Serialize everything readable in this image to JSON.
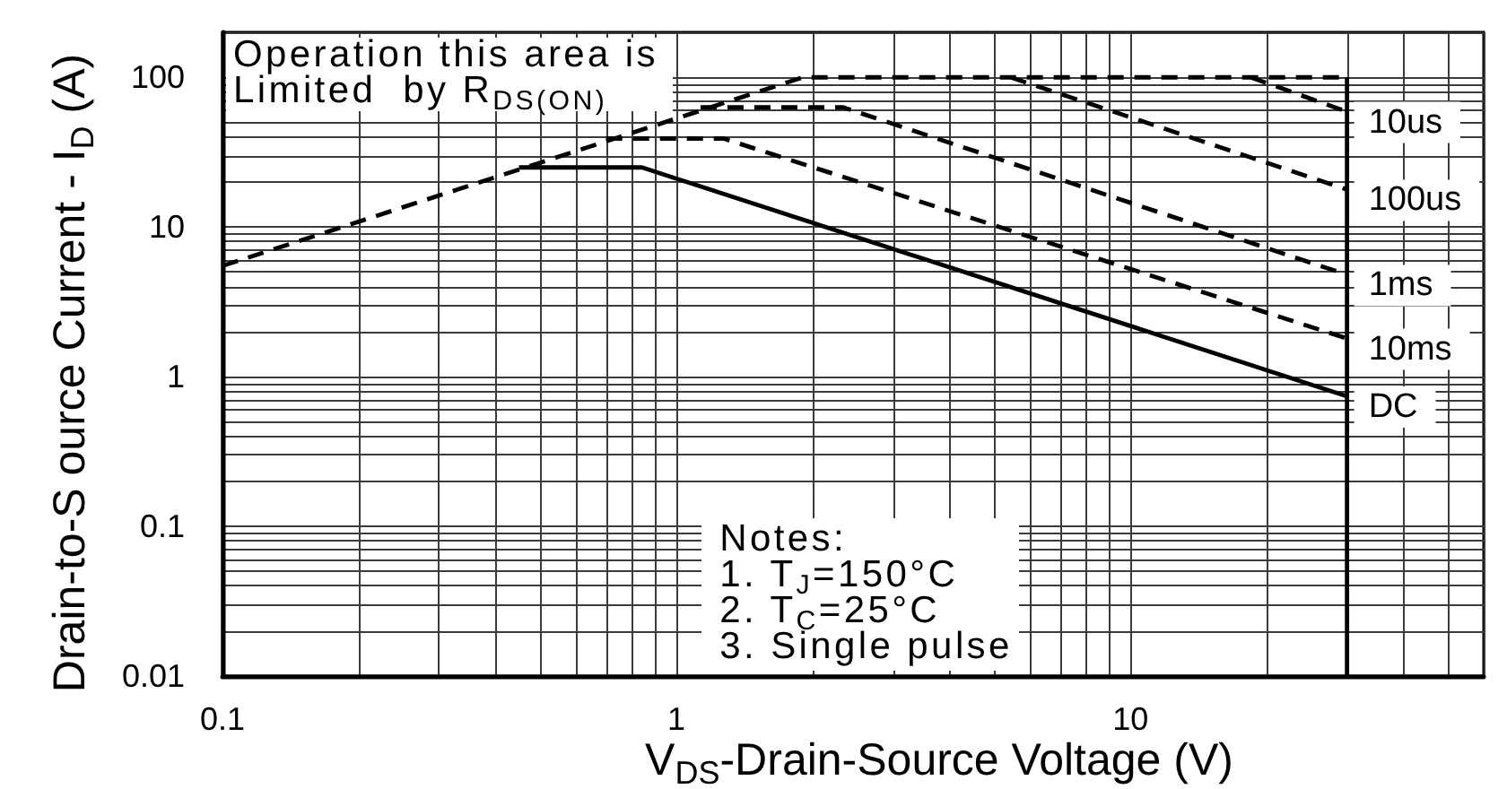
{
  "chart_data": {
    "type": "line",
    "xlabel": "V$_{DS}$-Drain-Source Voltage (V)",
    "ylabel": "Drain-to-S ource Current - I$_{D}$ (A)",
    "log": "xy",
    "grid": true,
    "marker": "none",
    "xlim": [
      0.1,
      60
    ],
    "ylim": [
      0.01,
      200
    ],
    "xticks": [
      0.1,
      1,
      10
    ],
    "yticks": [
      0.01,
      0.1,
      1,
      10,
      100
    ],
    "series": [
      {
        "color": "#000000",
        "line_style": "dashed",
        "x": [
          0.1,
          1.9,
          30
        ],
        "values": [
          5.5,
          100,
          100
        ]
      },
      {
        "name": "10us",
        "color": "#000000",
        "line_style": "dashed",
        "x": [
          18.4,
          30
        ],
        "values": [
          100,
          59
        ]
      },
      {
        "name": "100us",
        "color": "#000000",
        "line_style": "dashed",
        "x": [
          5.45,
          30
        ],
        "values": [
          100,
          17.8
        ]
      },
      {
        "name": "1ms",
        "color": "#000000",
        "line_style": "dashed",
        "x": [
          1.13,
          2.33,
          30
        ],
        "values": [
          63,
          63,
          4.8
        ]
      },
      {
        "name": "10ms",
        "color": "#000000",
        "line_style": "dashed",
        "x": [
          0.7,
          1.27,
          30
        ],
        "values": [
          39,
          39,
          1.8
        ]
      },
      {
        "name": "DC",
        "color": "#000000",
        "line_style": "solid",
        "x": [
          0.45,
          0.84,
          30
        ],
        "values": [
          25,
          25,
          0.74
        ]
      },
      {
        "color": "#000000",
        "line_style": "solid",
        "x": [
          30,
          30
        ],
        "values": [
          0.01,
          100
        ]
      }
    ],
    "annotations": [
      "Operation this area is\nLimited  by R$_{DS(ON)}$",
      "Notes:\n1. T$_{J}$=150°C\n2. T$_{C}$=25°C\n3. Single pulse"
    ]
  }
}
